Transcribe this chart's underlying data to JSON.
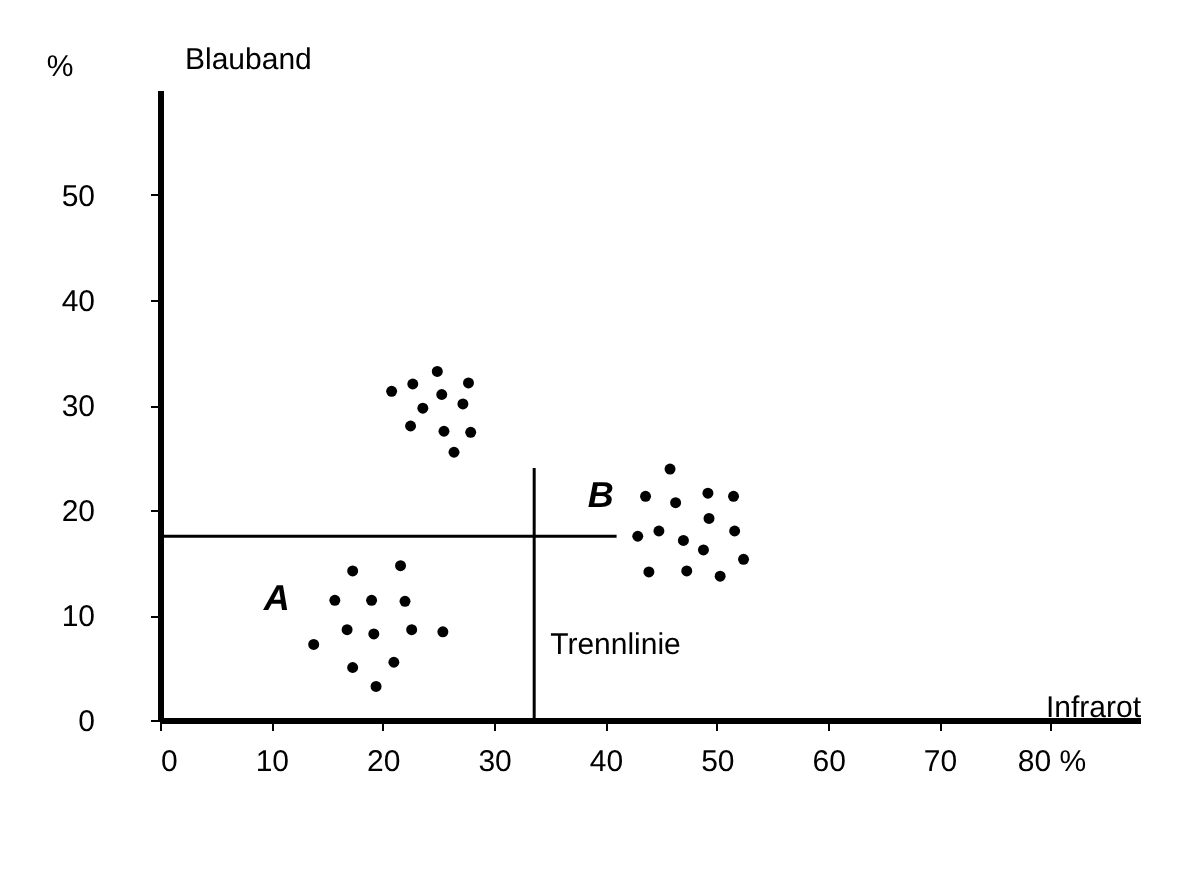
{
  "chart_data": {
    "type": "scatter",
    "xlabel": "Infrarot",
    "ylabel": "Blauband",
    "annotations": [
      "%"
    ],
    "xlim": [
      0,
      88
    ],
    "ylim": [
      0,
      60
    ],
    "xticks": [
      0,
      10,
      20,
      30,
      40,
      50,
      60,
      70,
      {
        "value": 80,
        "label": "80 %"
      }
    ],
    "yticks": [
      0,
      10,
      20,
      30,
      40,
      50
    ],
    "grid": false,
    "marker": "circle",
    "series": [
      {
        "type": "scatter",
        "name": "A",
        "color": "#000000",
        "x": [
          17.3,
          21.6,
          15.7,
          19.0,
          22.0,
          16.8,
          19.2,
          22.6,
          25.4,
          13.8,
          17.3,
          21.0,
          19.4
        ],
        "values": [
          14.2,
          14.7,
          11.4,
          11.4,
          11.3,
          8.6,
          8.2,
          8.6,
          8.4,
          7.2,
          5.0,
          5.5,
          3.2
        ]
      },
      {
        "type": "scatter",
        "color": "#000000",
        "x": [
          20.8,
          22.7,
          24.9,
          27.7,
          25.3,
          23.6,
          27.2,
          22.5,
          25.5,
          27.9,
          26.4
        ],
        "values": [
          31.3,
          32.0,
          33.2,
          32.1,
          31.0,
          29.7,
          30.1,
          28.0,
          27.5,
          27.4,
          25.5
        ]
      },
      {
        "type": "scatter",
        "name": "B",
        "color": "#000000",
        "x": [
          45.8,
          43.6,
          46.3,
          49.2,
          51.5,
          49.3,
          44.8,
          51.6,
          42.9,
          47.0,
          48.8,
          52.4,
          43.9,
          47.3,
          50.3
        ],
        "values": [
          23.9,
          21.3,
          20.7,
          21.6,
          21.3,
          19.2,
          18.0,
          18.0,
          17.5,
          17.1,
          16.2,
          15.3,
          14.1,
          14.2,
          13.7
        ]
      },
      {
        "type": "line",
        "marker": "none",
        "color": "#000000",
        "x": [
          0,
          41
        ],
        "values": [
          17.5,
          17.5
        ]
      },
      {
        "type": "line",
        "name": "Trennlinie",
        "marker": "none",
        "color": "#000000",
        "x": [
          33.6,
          33.6
        ],
        "values": [
          0,
          24
        ]
      }
    ]
  }
}
